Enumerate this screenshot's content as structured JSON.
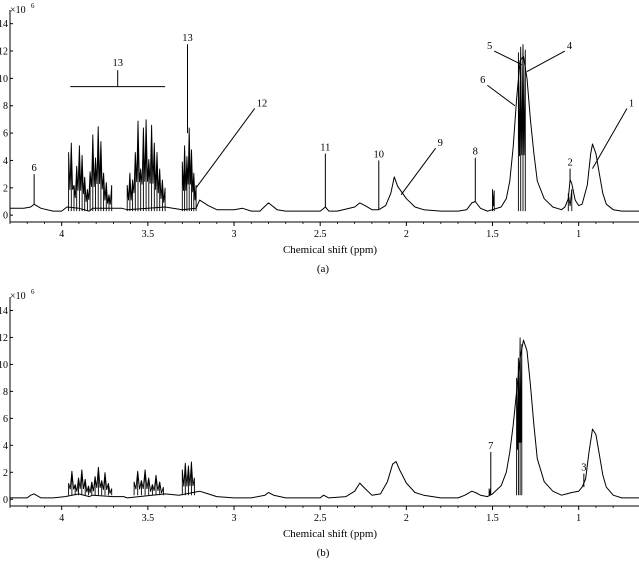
{
  "chart_data": [
    {
      "type": "line",
      "panel_label": "(a)",
      "xlabel": "Chemical shift (ppm)",
      "ylabel": "",
      "y_multiplier": "×10",
      "y_multiplier_exp": "6",
      "xlim": [
        4.3,
        0.65
      ],
      "ylim": [
        -0.5,
        15
      ],
      "x_reversed": true,
      "x_ticks": [
        4,
        3.5,
        3,
        2.5,
        2,
        1.5,
        1
      ],
      "y_ticks": [
        0,
        2,
        4,
        6,
        8,
        10,
        12,
        14
      ],
      "baseline_points": [
        [
          4.3,
          0.5
        ],
        [
          4.22,
          0.5
        ],
        [
          4.18,
          0.6
        ],
        [
          4.16,
          0.8
        ],
        [
          4.12,
          0.5
        ],
        [
          4.05,
          0.3
        ],
        [
          4.0,
          0.3
        ],
        [
          3.97,
          0.6
        ],
        [
          3.9,
          0.5
        ],
        [
          3.84,
          0.3
        ],
        [
          3.82,
          0.5
        ],
        [
          3.65,
          0.5
        ],
        [
          3.62,
          0.4
        ],
        [
          3.4,
          0.6
        ],
        [
          3.3,
          0.4
        ],
        [
          3.22,
          0.5
        ],
        [
          3.2,
          1.1
        ],
        [
          3.15,
          0.7
        ],
        [
          3.1,
          0.4
        ],
        [
          3.0,
          0.4
        ],
        [
          2.95,
          0.5
        ],
        [
          2.9,
          0.3
        ],
        [
          2.85,
          0.3
        ],
        [
          2.8,
          0.9
        ],
        [
          2.75,
          0.4
        ],
        [
          2.7,
          0.3
        ],
        [
          2.6,
          0.3
        ],
        [
          2.5,
          0.3
        ],
        [
          2.47,
          0.6
        ],
        [
          2.45,
          0.3
        ],
        [
          2.4,
          0.3
        ],
        [
          2.3,
          0.6
        ],
        [
          2.27,
          0.9
        ],
        [
          2.24,
          0.7
        ],
        [
          2.2,
          0.4
        ],
        [
          2.16,
          0.4
        ],
        [
          2.12,
          0.7
        ],
        [
          2.09,
          1.6
        ],
        [
          2.07,
          2.8
        ],
        [
          2.05,
          2.1
        ],
        [
          2.0,
          1.2
        ],
        [
          1.95,
          0.6
        ],
        [
          1.9,
          0.4
        ],
        [
          1.8,
          0.3
        ],
        [
          1.7,
          0.3
        ],
        [
          1.65,
          0.4
        ],
        [
          1.62,
          0.9
        ],
        [
          1.6,
          1.0
        ],
        [
          1.57,
          0.5
        ],
        [
          1.53,
          0.3
        ],
        [
          1.5,
          0.4
        ],
        [
          1.45,
          0.6
        ],
        [
          1.42,
          1.2
        ],
        [
          1.4,
          2.5
        ],
        [
          1.38,
          5.0
        ],
        [
          1.36,
          8.5
        ],
        [
          1.34,
          11.3
        ],
        [
          1.32,
          11.6
        ],
        [
          1.3,
          10.0
        ],
        [
          1.28,
          7.0
        ],
        [
          1.26,
          4.5
        ],
        [
          1.24,
          2.5
        ],
        [
          1.2,
          1.2
        ],
        [
          1.15,
          0.6
        ],
        [
          1.1,
          0.4
        ],
        [
          1.08,
          0.6
        ],
        [
          1.06,
          1.2
        ],
        [
          1.05,
          2.6
        ],
        [
          1.04,
          2.3
        ],
        [
          1.02,
          1.1
        ],
        [
          1.0,
          0.7
        ],
        [
          0.98,
          0.8
        ],
        [
          0.95,
          2.2
        ],
        [
          0.93,
          4.5
        ],
        [
          0.92,
          5.2
        ],
        [
          0.9,
          4.5
        ],
        [
          0.88,
          3.0
        ],
        [
          0.86,
          1.6
        ],
        [
          0.84,
          0.8
        ],
        [
          0.8,
          0.4
        ],
        [
          0.75,
          0.3
        ],
        [
          0.65,
          0.3
        ]
      ],
      "peak_clusters": [
        {
          "from": 3.96,
          "to": 3.71,
          "heights": [
            4.6,
            5.3,
            2.2,
            3.6,
            5.1,
            4.4,
            2.8,
            1.9,
            3.2,
            5.9,
            4.2,
            6.5,
            5.4,
            3.1,
            2.4,
            1.5,
            2.2
          ]
        },
        {
          "from": 3.62,
          "to": 3.4,
          "heights": [
            2.2,
            3.1,
            2.6,
            4.6,
            6.9,
            3.4,
            6.4,
            7.0,
            4.1,
            6.6,
            5.3,
            4.6,
            3.4,
            2.6,
            2.0
          ]
        },
        {
          "from": 3.3,
          "to": 3.22,
          "heights": [
            3.9,
            5.1,
            4.3,
            6.4,
            4.8,
            3.1,
            2.2
          ]
        },
        {
          "from": 1.35,
          "to": 1.31,
          "heights": [
            11.9,
            12.3,
            12.5,
            12.1
          ]
        },
        {
          "from": 1.5,
          "to": 1.49,
          "heights": [
            1.9,
            1.8
          ]
        },
        {
          "from": 1.06,
          "to": 1.04,
          "heights": [
            1.6,
            1.9
          ]
        }
      ],
      "annotations": [
        {
          "label": "6",
          "x": 4.16,
          "y": 0.8,
          "line_top": 3.0
        },
        {
          "label": "13",
          "x": 3.27,
          "y": 6.0,
          "line_top": 12.5
        },
        {
          "label": "11",
          "x": 2.47,
          "y": 0.6,
          "line_top": 4.5
        },
        {
          "label": "10",
          "x": 2.16,
          "y": 0.4,
          "line_top": 4.0
        },
        {
          "label": "8",
          "x": 1.6,
          "y": 1.0,
          "line_top": 4.2
        },
        {
          "label": "2",
          "x": 1.05,
          "y": 2.6,
          "line_top": 3.4
        },
        {
          "label": "12",
          "x": 3.22,
          "y": 2.0,
          "tx": 2.88,
          "ty": 7.8
        },
        {
          "label": "9",
          "x": 2.03,
          "y": 1.5,
          "tx": 1.83,
          "ty": 4.9
        },
        {
          "label": "1",
          "x": 0.92,
          "y": 3.4,
          "tx": 0.72,
          "ty": 7.8
        },
        {
          "label": "5",
          "x": 1.33,
          "y": 11.0,
          "tx": 1.49,
          "ty": 12.0
        },
        {
          "label": "6",
          "x": 1.37,
          "y": 8.0,
          "tx": 1.53,
          "ty": 9.5
        },
        {
          "label": "4",
          "x": 1.3,
          "y": 10.5,
          "tx": 1.08,
          "ty": 12.0
        }
      ],
      "bracket": {
        "label": "13",
        "from": 3.95,
        "to": 3.4,
        "y": 9.4,
        "stem_top": 10.6
      }
    },
    {
      "type": "line",
      "panel_label": "(b)",
      "xlabel": "Chemical shift (ppm)",
      "ylabel": "",
      "y_multiplier": "×10",
      "y_multiplier_exp": "6",
      "xlim": [
        4.3,
        0.65
      ],
      "ylim": [
        -0.5,
        15
      ],
      "x_reversed": true,
      "x_ticks": [
        4,
        3.5,
        3,
        2.5,
        2,
        1.5,
        1
      ],
      "y_ticks": [
        0,
        2,
        4,
        6,
        8,
        10,
        12,
        14
      ],
      "baseline_points": [
        [
          4.3,
          0.1
        ],
        [
          4.2,
          0.1
        ],
        [
          4.18,
          0.3
        ],
        [
          4.16,
          0.4
        ],
        [
          4.12,
          0.1
        ],
        [
          4.05,
          0.1
        ],
        [
          3.98,
          0.2
        ],
        [
          3.9,
          0.4
        ],
        [
          3.84,
          0.2
        ],
        [
          3.82,
          0.3
        ],
        [
          3.7,
          0.2
        ],
        [
          3.64,
          0.2
        ],
        [
          3.62,
          0.1
        ],
        [
          3.4,
          0.4
        ],
        [
          3.32,
          0.3
        ],
        [
          3.2,
          0.6
        ],
        [
          3.15,
          0.4
        ],
        [
          3.1,
          0.2
        ],
        [
          3.0,
          0.1
        ],
        [
          2.9,
          0.1
        ],
        [
          2.82,
          0.3
        ],
        [
          2.8,
          0.5
        ],
        [
          2.77,
          0.3
        ],
        [
          2.7,
          0.1
        ],
        [
          2.5,
          0.1
        ],
        [
          2.48,
          0.3
        ],
        [
          2.45,
          0.1
        ],
        [
          2.35,
          0.2
        ],
        [
          2.3,
          0.6
        ],
        [
          2.27,
          1.2
        ],
        [
          2.24,
          0.8
        ],
        [
          2.2,
          0.3
        ],
        [
          2.15,
          0.4
        ],
        [
          2.11,
          1.3
        ],
        [
          2.08,
          2.6
        ],
        [
          2.06,
          2.8
        ],
        [
          2.04,
          2.2
        ],
        [
          2.0,
          1.2
        ],
        [
          1.95,
          0.5
        ],
        [
          1.9,
          0.3
        ],
        [
          1.8,
          0.1
        ],
        [
          1.7,
          0.1
        ],
        [
          1.66,
          0.3
        ],
        [
          1.62,
          0.6
        ],
        [
          1.6,
          0.5
        ],
        [
          1.57,
          0.3
        ],
        [
          1.53,
          0.2
        ],
        [
          1.5,
          0.4
        ],
        [
          1.45,
          1.0
        ],
        [
          1.42,
          2.0
        ],
        [
          1.4,
          3.5
        ],
        [
          1.38,
          5.5
        ],
        [
          1.36,
          8.0
        ],
        [
          1.34,
          10.5
        ],
        [
          1.32,
          11.8
        ],
        [
          1.3,
          11.0
        ],
        [
          1.28,
          8.5
        ],
        [
          1.26,
          5.5
        ],
        [
          1.24,
          3.0
        ],
        [
          1.2,
          1.3
        ],
        [
          1.15,
          0.6
        ],
        [
          1.1,
          0.3
        ],
        [
          1.07,
          0.4
        ],
        [
          1.04,
          0.5
        ],
        [
          1.0,
          0.6
        ],
        [
          0.98,
          0.9
        ],
        [
          0.96,
          1.5
        ],
        [
          0.94,
          3.5
        ],
        [
          0.92,
          5.2
        ],
        [
          0.9,
          4.8
        ],
        [
          0.88,
          3.3
        ],
        [
          0.86,
          1.8
        ],
        [
          0.84,
          0.9
        ],
        [
          0.8,
          0.3
        ],
        [
          0.75,
          0.1
        ],
        [
          0.65,
          0.1
        ]
      ],
      "peak_clusters": [
        {
          "from": 3.96,
          "to": 3.71,
          "heights": [
            1.2,
            2.1,
            1.1,
            1.6,
            2.2,
            1.5,
            1.0,
            1.3,
            1.7,
            2.4,
            1.4,
            2.0,
            1.2,
            0.8
          ]
        },
        {
          "from": 3.58,
          "to": 3.41,
          "heights": [
            1.3,
            2.1,
            1.4,
            2.2,
            1.6,
            1.1,
            1.8,
            1.3,
            0.9
          ]
        },
        {
          "from": 3.3,
          "to": 3.23,
          "heights": [
            2.2,
            2.7,
            2.5,
            2.8,
            1.6
          ]
        },
        {
          "from": 1.36,
          "to": 1.33,
          "heights": [
            9.0,
            10.5,
            12.0,
            11.5
          ]
        },
        {
          "from": 1.52,
          "to": 1.51,
          "heights": [
            0.8,
            0.9
          ]
        }
      ],
      "annotations": [
        {
          "label": "7",
          "x": 1.51,
          "y": 0.9,
          "line_top": 3.5
        },
        {
          "label": "3",
          "x": 0.97,
          "y": 0.9,
          "line_top": 1.9
        }
      ]
    }
  ]
}
